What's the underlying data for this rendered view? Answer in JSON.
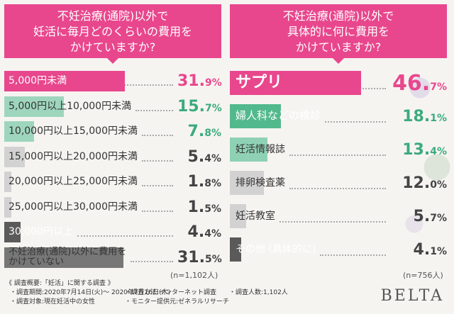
{
  "chart_data": [
    {
      "type": "bar",
      "title": "不妊治療(通院)以外で\n妊活に毎月どのくらいの費用を\nかけていますか?",
      "categories": [
        "5,000円未満",
        "5,000円以上10,000円未満",
        "10,000円以上15,000円未満",
        "15,000円以上20,000円未満",
        "20,000円以上25,000円未満",
        "25,000円以上30,000円未満",
        "30,000円以上",
        "不妊治療(通院)以外に費用を\nかけていない"
      ],
      "values": [
        31.9,
        15.7,
        7.8,
        5.4,
        1.8,
        1.5,
        4.4,
        31.5
      ],
      "value_labels": [
        [
          "31.",
          "9",
          "%"
        ],
        [
          "15.",
          "7",
          "%"
        ],
        [
          "7.",
          "8",
          "%"
        ],
        [
          "5.",
          "4",
          "%"
        ],
        [
          "1.",
          "8",
          "%"
        ],
        [
          "1.",
          "5",
          "%"
        ],
        [
          "4.",
          "4",
          "%"
        ],
        [
          "31.",
          "5",
          "%"
        ]
      ],
      "n_label": "(n=1,102人)",
      "colors": {
        "top": "#e8478d",
        "second": "#8fd1b4",
        "third": "#9fd9be",
        "rest": "#d0d0d0",
        "dark": "#555555"
      },
      "pct_colors": [
        "#e8478d",
        "#3bab7d",
        "#3bab7d",
        "#444444",
        "#444444",
        "#444444",
        "#444444",
        "#444444"
      ],
      "bar_colors": [
        "#e8478d",
        "#9ed6bd",
        "#9ed6bd",
        "#d2d2d2",
        "#d2d2d2",
        "#d2d2d2",
        "#5a5a5a",
        "#777777"
      ],
      "label_white": [
        true,
        false,
        false,
        false,
        false,
        false,
        true,
        false
      ]
    },
    {
      "type": "bar",
      "title": "不妊治療(通院)以外で\n具体的に何に費用を\nかけていますか?",
      "categories": [
        "サプリ",
        "婦人科などの検診",
        "妊活情報誌",
        "排卵検査薬",
        "妊活教室",
        "その他 (具体的に)"
      ],
      "values": [
        46.7,
        18.1,
        13.4,
        12.0,
        5.7,
        4.1
      ],
      "value_labels": [
        [
          "46.",
          "7",
          "%"
        ],
        [
          "18.",
          "1",
          "%"
        ],
        [
          "13.",
          "4",
          "%"
        ],
        [
          "12.",
          "0",
          "%"
        ],
        [
          "5.",
          "7",
          "%"
        ],
        [
          "4.",
          "1",
          "%"
        ]
      ],
      "n_label": "(n=756人)",
      "pct_colors": [
        "#e8478d",
        "#3bab7d",
        "#3bab7d",
        "#444444",
        "#444444",
        "#444444"
      ],
      "bar_colors": [
        "#e8478d",
        "#52b98d",
        "#8fd1b4",
        "#d2d2d2",
        "#d2d2d2",
        "#5a5a5a"
      ],
      "label_white": [
        true,
        true,
        false,
        false,
        false,
        true
      ]
    }
  ],
  "footer": {
    "title": "《 調査概要:「妊活」に関する調査 》",
    "items": [
      "・調査期間:2020年7月14日(火)〜 2020年7月16日(木)",
      "・調査方法:インターネット調査",
      "・調査人数:1,102人",
      "・調査対象:現在妊活中の女性",
      "・モニター提供元:ゼネラルリサーチ"
    ]
  },
  "logo": "BELTA"
}
